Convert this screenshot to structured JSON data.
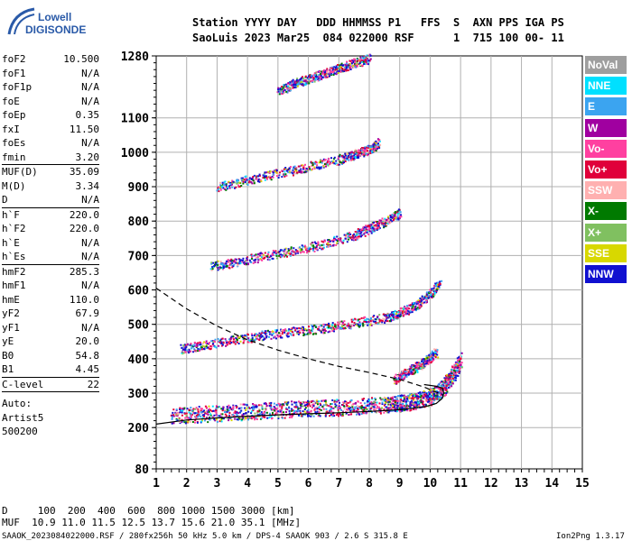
{
  "logo": {
    "line1": "Lowell",
    "line2": "DIGISONDE"
  },
  "header": {
    "line1": "Station YYYY DAY   DDD HHMMSS P1   FFS  S  AXN PPS IGA PS",
    "line2": "SaoLuis 2023 Mar25  084 022000 RSF      1  715 100 00- 11"
  },
  "params": [
    {
      "name": "foF2",
      "value": "10.500"
    },
    {
      "name": "foF1",
      "value": "N/A"
    },
    {
      "name": "foF1p",
      "value": "N/A"
    },
    {
      "name": "foE",
      "value": "N/A"
    },
    {
      "name": "foEp",
      "value": "0.35"
    },
    {
      "name": "fxI",
      "value": "11.50"
    },
    {
      "name": "foEs",
      "value": "N/A"
    },
    {
      "name": "fmin",
      "value": "3.20",
      "sep": true
    },
    {
      "name": "MUF(D)",
      "value": "35.09"
    },
    {
      "name": "M(D)",
      "value": "3.34"
    },
    {
      "name": "D",
      "value": "N/A",
      "sep": true
    },
    {
      "name": "h`F",
      "value": "220.0"
    },
    {
      "name": "h`F2",
      "value": "220.0"
    },
    {
      "name": "h`E",
      "value": "N/A"
    },
    {
      "name": "h`Es",
      "value": "N/A",
      "sep": true
    },
    {
      "name": "hmF2",
      "value": "285.3"
    },
    {
      "name": "hmF1",
      "value": "N/A"
    },
    {
      "name": "hmE",
      "value": "110.0"
    },
    {
      "name": "yF2",
      "value": "67.9"
    },
    {
      "name": "yF1",
      "value": "N/A"
    },
    {
      "name": "yE",
      "value": "20.0"
    },
    {
      "name": "B0",
      "value": "54.8"
    },
    {
      "name": "B1",
      "value": "4.45",
      "sep": true
    },
    {
      "name": "C-level",
      "value": "22",
      "sep": true
    }
  ],
  "autoscaling": [
    "Auto:",
    "Artist5",
    "500200"
  ],
  "legend": [
    {
      "label": "NoVal",
      "color": "#9e9e9e"
    },
    {
      "label": "NNE",
      "color": "#00e0ff"
    },
    {
      "label": "E",
      "color": "#3ba4f0"
    },
    {
      "label": "W",
      "color": "#a000a0"
    },
    {
      "label": "Vo-",
      "color": "#ff40a0"
    },
    {
      "label": "Vo+",
      "color": "#e0003a"
    },
    {
      "label": "SSW",
      "color": "#ffb0b0"
    },
    {
      "label": "X-",
      "color": "#007a00"
    },
    {
      "label": "X+",
      "color": "#80c060"
    },
    {
      "label": "SSE",
      "color": "#d8d800"
    },
    {
      "label": "NNW",
      "color": "#1010d0"
    }
  ],
  "footer": {
    "d_row": "D     100  200  400  600  800 1000 1500 3000 [km]",
    "muf_row": "MUF  10.9 11.0 11.5 12.5 13.7 15.6 21.0 35.1 [MHz]",
    "file_info": "SAAOK_2023084022000.RSF / 280fx256h 50 kHz 5.0 km / DPS-4 SAAOK 903 / 2.6 S 315.8 E",
    "version": "Ion2Png 1.3.17"
  },
  "chart_data": {
    "type": "scatter",
    "title": "",
    "xlabel": "",
    "ylabel": "",
    "xlim": [
      1,
      15
    ],
    "ylim": [
      80,
      1280
    ],
    "x_ticks": [
      1,
      2,
      3,
      4,
      5,
      6,
      7,
      8,
      9,
      10,
      11,
      12,
      13,
      14,
      15
    ],
    "y_ticks": [
      80,
      200,
      300,
      400,
      500,
      600,
      700,
      800,
      900,
      1000,
      1100,
      1280
    ],
    "series": [
      {
        "kind": "trace",
        "x": [
          1.5,
          2.5,
          3.5,
          4.5,
          5.5,
          6.5,
          7.5,
          8.5,
          9.0,
          9.5,
          10.0,
          10.4,
          10.7,
          11.0
        ],
        "y": [
          235,
          240,
          245,
          250,
          255,
          258,
          262,
          268,
          272,
          278,
          290,
          315,
          350,
          400
        ]
      },
      {
        "kind": "trace",
        "x": [
          1.8,
          2.5,
          3.5,
          4.5,
          5.5,
          6.5,
          7.5,
          8.5,
          9.0,
          9.5,
          10.0,
          10.3
        ],
        "y": [
          430,
          440,
          455,
          470,
          480,
          490,
          505,
          520,
          535,
          555,
          590,
          620
        ]
      },
      {
        "kind": "trace",
        "x": [
          2.8,
          3.5,
          4.5,
          5.5,
          6.5,
          7.5,
          8.0,
          8.5,
          9.0
        ],
        "y": [
          670,
          680,
          700,
          715,
          735,
          760,
          780,
          800,
          825
        ]
      },
      {
        "kind": "trace",
        "x": [
          3.0,
          4.0,
          5.0,
          6.0,
          7.0,
          7.5,
          8.0,
          8.3
        ],
        "y": [
          900,
          920,
          940,
          960,
          980,
          995,
          1010,
          1030
        ]
      },
      {
        "kind": "trace",
        "x": [
          5.0,
          5.5,
          6.0,
          6.5,
          7.0,
          7.5,
          8.0
        ],
        "y": [
          1180,
          1200,
          1215,
          1230,
          1245,
          1260,
          1275
        ]
      },
      {
        "kind": "trace",
        "x": [
          8.8,
          9.2,
          9.6,
          9.9,
          10.2
        ],
        "y": [
          340,
          360,
          380,
          400,
          420
        ]
      },
      {
        "kind": "profile",
        "x": [
          1.0,
          2.0,
          3.0,
          4.0,
          5.0,
          6.0,
          7.0,
          8.0,
          9.0,
          9.8,
          10.2,
          10.4,
          10.45,
          10.4,
          10.2,
          9.8
        ],
        "y": [
          210,
          222,
          228,
          233,
          237,
          240,
          243,
          247,
          252,
          260,
          270,
          285,
          300,
          315,
          320,
          325
        ]
      },
      {
        "kind": "dashed",
        "x": [
          1.0,
          1.5,
          2.0,
          3.0,
          4.0,
          5.0,
          6.0,
          7.0,
          8.0,
          9.0,
          9.8,
          10.4
        ],
        "y": [
          605,
          575,
          545,
          495,
          455,
          425,
          400,
          378,
          360,
          340,
          318,
          295
        ]
      }
    ]
  }
}
